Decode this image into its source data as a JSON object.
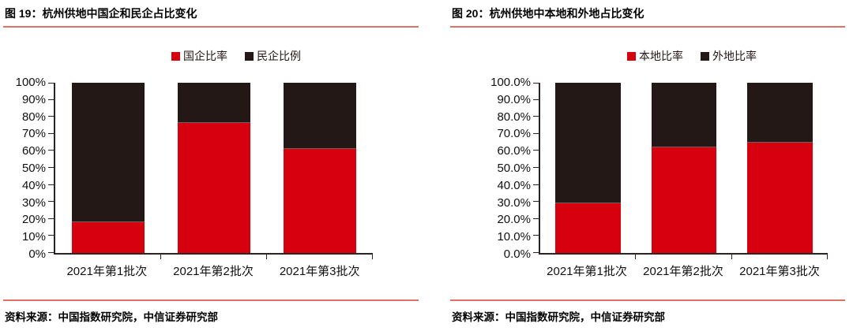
{
  "colors": {
    "series_red": "#d7000f",
    "series_black": "#231815",
    "rule_red": "#dd7266",
    "axis": "#2a2523"
  },
  "chart_data": [
    {
      "type": "bar",
      "stacked": true,
      "title": "图 19：杭州供地中国企和民企占比变化",
      "categories": [
        "2021年第1批次",
        "2021年第2批次",
        "2021年第3批次"
      ],
      "series": [
        {
          "name": "国企比率",
          "color": "#d7000f",
          "values": [
            18,
            76.5,
            61
          ]
        },
        {
          "name": "民企比例",
          "color": "#231815",
          "values": [
            82,
            23.5,
            39
          ]
        }
      ],
      "ylim": [
        0,
        100
      ],
      "yticks": [
        "0%",
        "10%",
        "20%",
        "30%",
        "40%",
        "50%",
        "60%",
        "70%",
        "80%",
        "90%",
        "100%"
      ],
      "legend_position": "top",
      "grid": false,
      "source": "资料来源：中国指数研究院，中信证券研究部"
    },
    {
      "type": "bar",
      "stacked": true,
      "title": "图 20：杭州供地中本地和外地占比变化",
      "categories": [
        "2021年第1批次",
        "2021年第2批次",
        "2021年第3批次"
      ],
      "series": [
        {
          "name": "本地比率",
          "color": "#d7000f",
          "values": [
            29,
            62,
            65
          ]
        },
        {
          "name": "外地比率",
          "color": "#231815",
          "values": [
            71,
            38,
            35
          ]
        }
      ],
      "ylim": [
        0,
        100
      ],
      "yticks": [
        "0.0%",
        "10.0%",
        "20.0%",
        "30.0%",
        "40.0%",
        "50.0%",
        "60.0%",
        "70.0%",
        "80.0%",
        "90.0%",
        "100.0%"
      ],
      "legend_position": "top",
      "grid": false,
      "source": "资料来源：中国指数研究院，中信证券研究部"
    }
  ]
}
